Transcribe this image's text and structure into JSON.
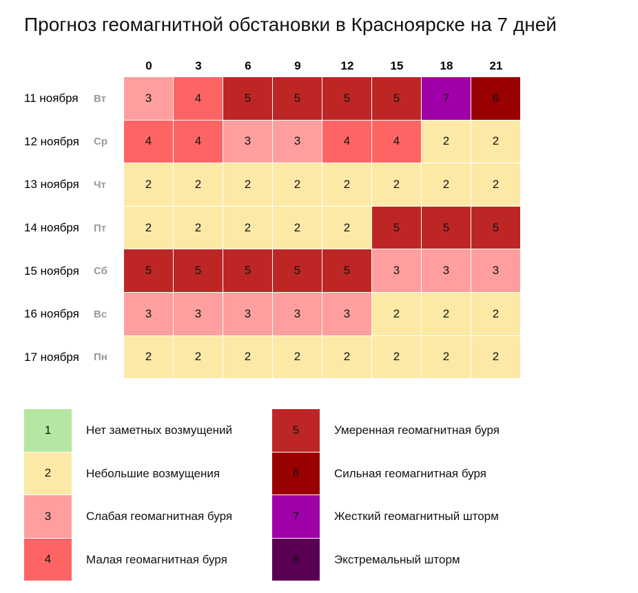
{
  "title": "Прогноз геомагнитной обстановки в Красноярске на 7 дней",
  "hours": [
    0,
    3,
    6,
    9,
    12,
    15,
    18,
    21
  ],
  "rows": [
    {
      "date": "11 ноября",
      "weekday": "Вт",
      "values": [
        3,
        4,
        5,
        5,
        5,
        5,
        7,
        6
      ]
    },
    {
      "date": "12 ноября",
      "weekday": "Ср",
      "values": [
        4,
        4,
        3,
        3,
        4,
        4,
        2,
        2
      ]
    },
    {
      "date": "13 ноября",
      "weekday": "Чт",
      "values": [
        2,
        2,
        2,
        2,
        2,
        2,
        2,
        2
      ]
    },
    {
      "date": "14 ноября",
      "weekday": "Пт",
      "values": [
        2,
        2,
        2,
        2,
        2,
        5,
        5,
        5
      ]
    },
    {
      "date": "15 ноября",
      "weekday": "Сб",
      "values": [
        5,
        5,
        5,
        5,
        5,
        3,
        3,
        3
      ]
    },
    {
      "date": "16 ноября",
      "weekday": "Вс",
      "values": [
        3,
        3,
        3,
        3,
        3,
        2,
        2,
        2
      ]
    },
    {
      "date": "17 ноября",
      "weekday": "Пн",
      "values": [
        2,
        2,
        2,
        2,
        2,
        2,
        2,
        2
      ]
    }
  ],
  "legend": [
    {
      "level": 1,
      "label": "Нет заметных возмущений",
      "color": "#b5e6a2"
    },
    {
      "level": 2,
      "label": "Небольшие возмущения",
      "color": "#fde9a6"
    },
    {
      "level": 3,
      "label": "Слабая геомагнитная буря",
      "color": "#fe9e9e"
    },
    {
      "level": 4,
      "label": "Малая геомагнитная буря",
      "color": "#fd6565"
    },
    {
      "level": 5,
      "label": "Умеренная геомагнитная буря",
      "color": "#be2626"
    },
    {
      "level": 6,
      "label": "Сильная геомагнитная буря",
      "color": "#990000"
    },
    {
      "level": 7,
      "label": "Жесткий геомагнитный шторм",
      "color": "#a000a8"
    },
    {
      "level": 8,
      "label": "Экстремальный шторм",
      "color": "#5a0052"
    }
  ]
}
